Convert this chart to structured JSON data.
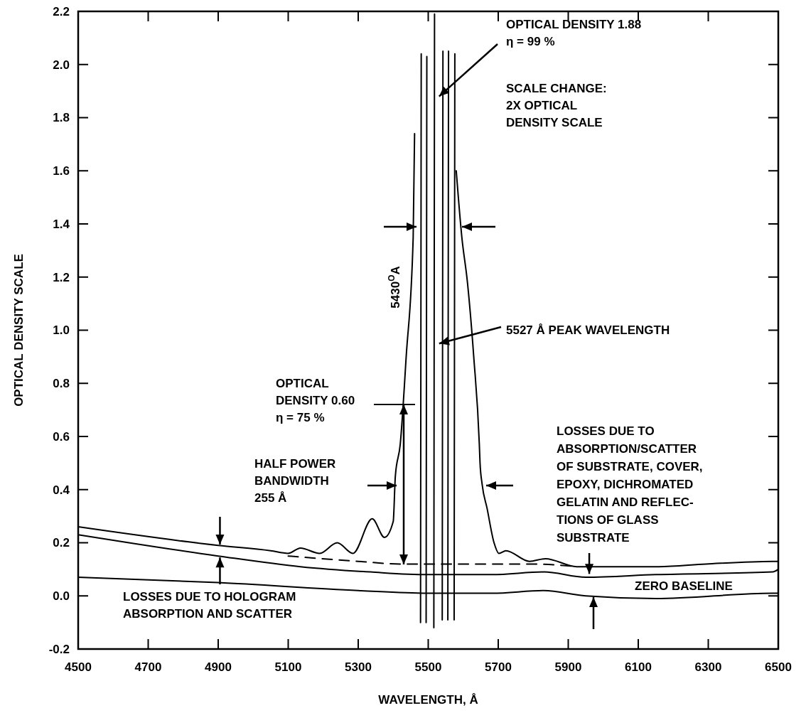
{
  "chart_data": {
    "type": "line",
    "xlabel": "WAVELENGTH, Å",
    "ylabel": "OPTICAL DENSITY SCALE",
    "xlim": [
      4500,
      6500
    ],
    "xticks": [
      4500,
      4700,
      4900,
      5100,
      5300,
      5500,
      5700,
      5900,
      6100,
      6300,
      6500
    ],
    "ylim": [
      -0.2,
      2.2
    ],
    "yticks": [
      -0.2,
      {
        "value": 0,
        "label": "0.0"
      },
      0.2,
      0.4,
      0.6,
      0.8,
      {
        "value": 1,
        "label": "1.0"
      },
      1.2,
      1.4,
      1.6,
      1.8,
      {
        "value": 2,
        "label": "2.0"
      },
      2.2
    ],
    "marker": "none",
    "series": [
      {
        "color": "#000000",
        "x": [
          4500,
          4900,
          5050,
          5100,
          5135,
          5190,
          5240,
          5285,
          5340,
          5375,
          5400,
          5406,
          5420,
          5437,
          5457,
          5461,
          5520,
          5580,
          5596,
          5612,
          5630,
          5646,
          5648,
          5654,
          5668,
          5688,
          5702,
          5722,
          5789,
          5835,
          5924,
          6025,
          6158,
          6293,
          6484,
          6500
        ],
        "values": [
          0.26,
          0.19,
          0.17,
          0.16,
          0.18,
          0.16,
          0.2,
          0.16,
          0.29,
          0.22,
          0.28,
          0.45,
          0.57,
          0.9,
          1.35,
          1.74,
          null,
          1.6,
          1.35,
          1.18,
          0.9,
          0.57,
          0.5,
          0.42,
          0.33,
          0.2,
          0.16,
          0.17,
          0.13,
          0.14,
          0.11,
          0.11,
          0.11,
          0.12,
          0.13,
          0.13
        ]
      },
      {
        "color": "#000000",
        "line_style": "dashed",
        "x": [
          5100,
          5300,
          5420,
          5600,
          5800,
          5924
        ],
        "values": [
          0.15,
          0.13,
          0.12,
          0.12,
          0.12,
          0.11
        ]
      },
      {
        "color": "#000000",
        "x": [
          4500,
          4900,
          5135,
          5335,
          5496,
          5683,
          5830,
          5950,
          6150,
          6484,
          6500
        ],
        "values": [
          0.23,
          0.15,
          0.11,
          0.09,
          0.08,
          0.08,
          0.09,
          0.07,
          0.08,
          0.09,
          0.1
        ]
      },
      {
        "color": "#000000",
        "x": [
          4500,
          4900,
          5300,
          5496,
          5683,
          5830,
          5950,
          6150,
          6484,
          6500
        ],
        "values": [
          0.07,
          0.05,
          0.02,
          0.01,
          0.01,
          0.02,
          0,
          -0.01,
          0.01,
          0.01
        ]
      },
      {
        "color": "#000000",
        "x": [
          5478,
          5480
        ],
        "values": [
          -0.1,
          2.04
        ]
      },
      {
        "color": "#000000",
        "x": [
          5494,
          5496
        ],
        "values": [
          -0.1,
          2.03
        ]
      },
      {
        "color": "#000000",
        "x": [
          5516,
          5518
        ],
        "values": [
          -0.12,
          2.19
        ]
      },
      {
        "color": "#000000",
        "x": [
          5540,
          5542
        ],
        "values": [
          -0.09,
          2.05
        ]
      },
      {
        "color": "#000000",
        "x": [
          5556,
          5558
        ],
        "values": [
          -0.09,
          2.05
        ]
      },
      {
        "color": "#000000",
        "x": [
          5574,
          5576
        ],
        "values": [
          -0.09,
          2.04
        ]
      }
    ],
    "annotations": [
      {
        "text": "OPTICAL DENSITY 1.88\nη = 99 %",
        "x": 5527,
        "y": 1.88
      },
      "SCALE CHANGE:\n2X OPTICAL\nDENSITY SCALE",
      {
        "text": "5527 Å PEAK WAVELENGTH",
        "x": 5527,
        "y": 0.95
      },
      "5430$^{O}$A",
      "OPTICAL\nDENSITY 0.60\nη = 75 %",
      "HALF POWER\nBANDWIDTH\n255 Å",
      {
        "text": "LOSSES DUE TO\nABSORPTION/SCATTER\nOF SUBSTRATE, COVER,\nEPOXY, DICHROMATED\nGELATIN AND REFLEC-\nTIONS OF GLASS\nSUBSTRATE",
        "x": 5960,
        "y": 0.08
      },
      "ZERO BASELINE",
      {
        "text": "LOSSES DUE TO HOLOGRAM\nABSORPTION AND SCATTER",
        "x": 4905,
        "y": 0.15
      }
    ]
  }
}
